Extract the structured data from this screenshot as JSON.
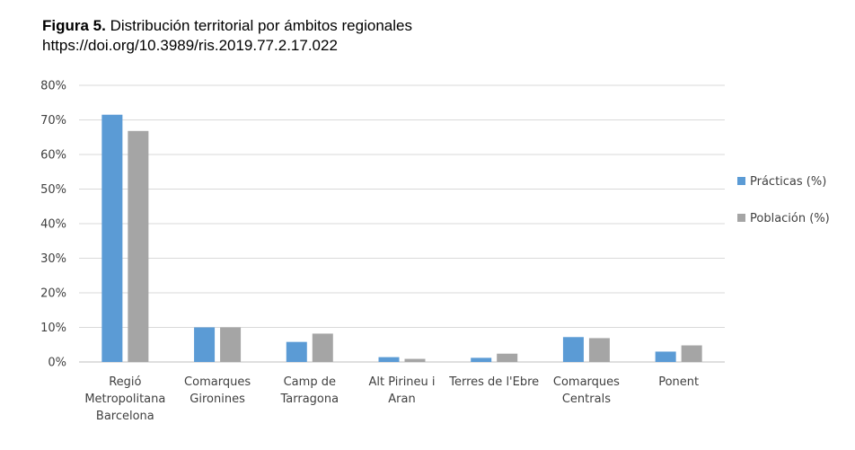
{
  "figure": {
    "label": "Figura 5.",
    "title": "Distribución territorial por ámbitos regionales",
    "doi": "https://doi.org/10.3989/ris.2019.77.2.17.022"
  },
  "chart_data": {
    "type": "bar",
    "title": "",
    "xlabel": "",
    "ylabel": "",
    "ylim": [
      0,
      80
    ],
    "yticks": [
      "0%",
      "10%",
      "20%",
      "30%",
      "40%",
      "50%",
      "60%",
      "70%",
      "80%"
    ],
    "grid": true,
    "legend_position": "right",
    "categories": [
      [
        "Regió",
        "Metropolitana",
        "Barcelona"
      ],
      [
        "Comarques",
        "Gironines"
      ],
      [
        "Camp de",
        "Tarragona"
      ],
      [
        "Alt Pirineu i",
        "Aran"
      ],
      [
        "Terres de l'Ebre"
      ],
      [
        "Comarques",
        "Centrals"
      ],
      [
        "Ponent"
      ]
    ],
    "series": [
      {
        "name": "Prácticas (%)",
        "color": "#5b9bd5",
        "values": [
          71.5,
          10.0,
          5.8,
          1.4,
          1.2,
          7.2,
          3.0
        ]
      },
      {
        "name": "Población (%)",
        "color": "#a5a5a5",
        "values": [
          66.8,
          10.0,
          8.2,
          0.9,
          2.4,
          6.9,
          4.8
        ]
      }
    ]
  }
}
